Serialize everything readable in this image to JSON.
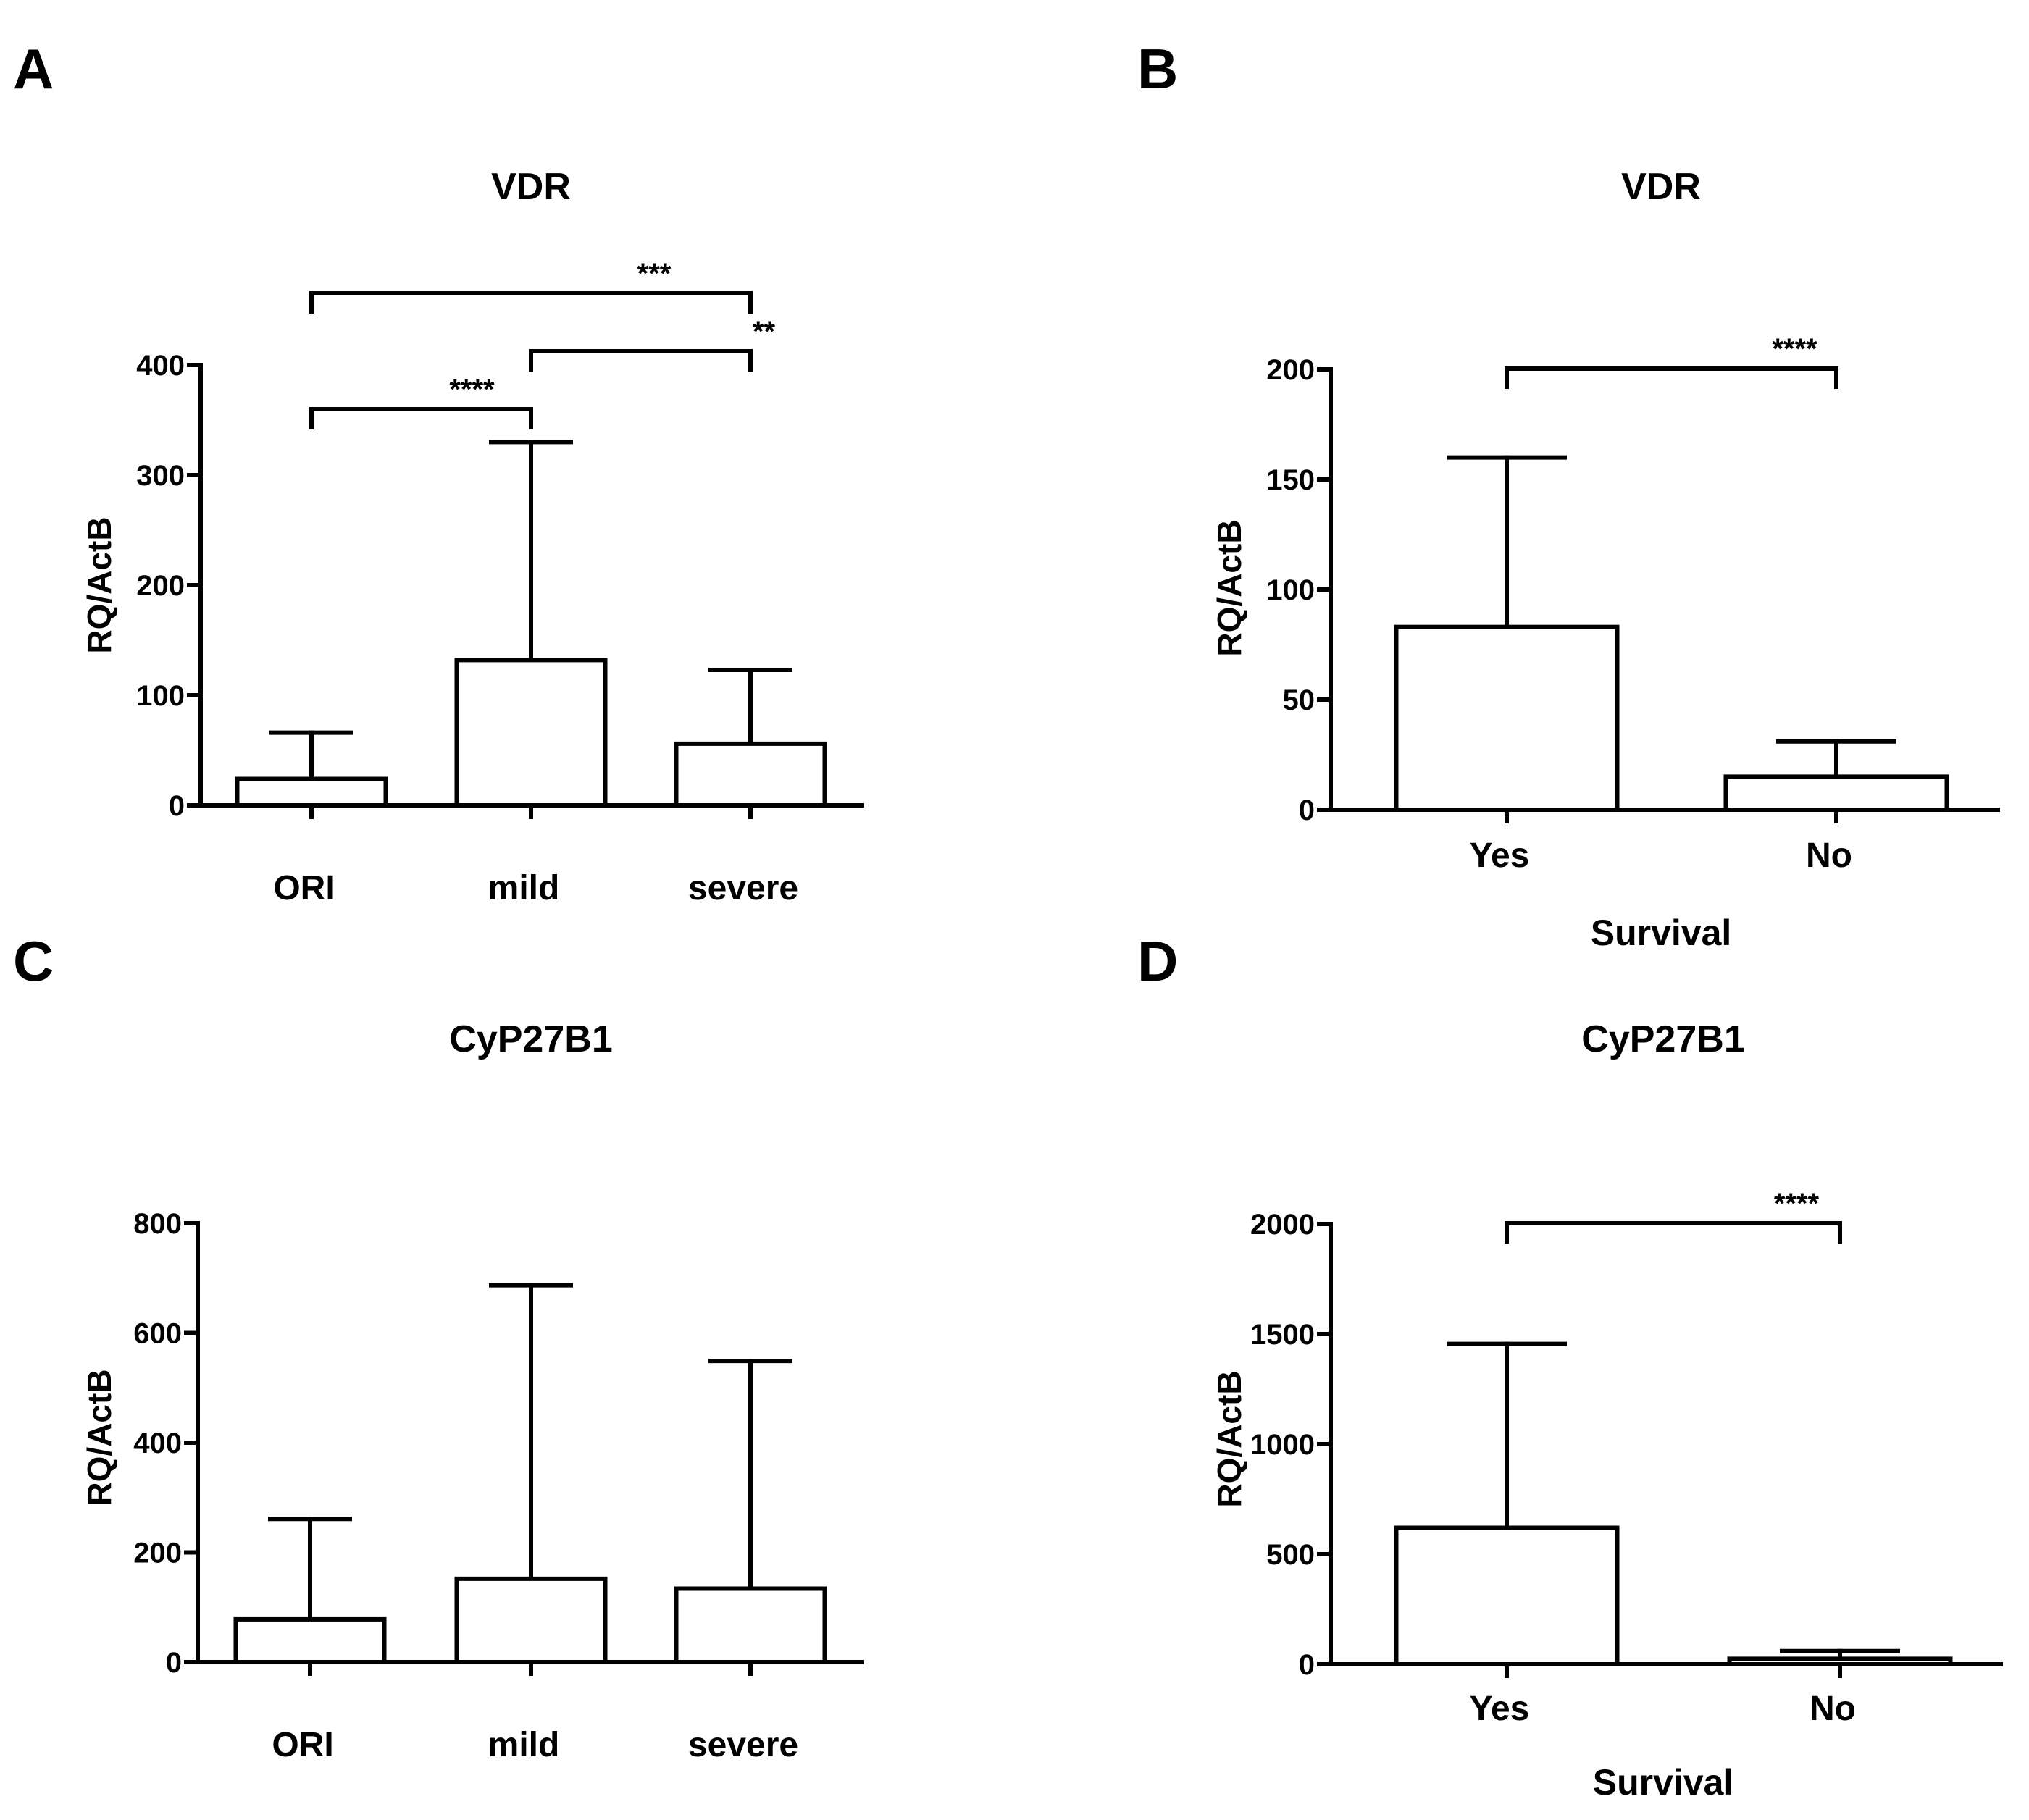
{
  "colors": {
    "ink": "#000000",
    "bar_fill": "#ffffff",
    "background": "#ffffff"
  },
  "chart_data": [
    {
      "panel": "A",
      "type": "bar",
      "title": "VDR",
      "ylabel": "RQ/ActB",
      "xlabel": "",
      "categories": [
        "ORI",
        "mild",
        "severe"
      ],
      "values": [
        24,
        132,
        56
      ],
      "error_upper": [
        66,
        330,
        123
      ],
      "ylim": [
        0,
        400
      ],
      "yticks": [
        0,
        100,
        200,
        300,
        400
      ],
      "significance": [
        {
          "from": 0,
          "to": 1,
          "label": "****",
          "level": 0
        },
        {
          "from": 1,
          "to": 2,
          "label": "**",
          "level": 1
        },
        {
          "from": 0,
          "to": 2,
          "label": "***",
          "level": 2
        }
      ]
    },
    {
      "panel": "B",
      "type": "bar",
      "title": "VDR",
      "ylabel": "RQ/ActB",
      "xlabel": "Survival",
      "categories": [
        "Yes",
        "No"
      ],
      "values": [
        83,
        15
      ],
      "error_upper": [
        160,
        31
      ],
      "ylim": [
        0,
        200
      ],
      "yticks": [
        0,
        50,
        100,
        150,
        200
      ],
      "significance": [
        {
          "from": 0,
          "to": 1,
          "label": "****",
          "level": 0
        }
      ]
    },
    {
      "panel": "C",
      "type": "bar",
      "title": "CyP27B1",
      "ylabel": "RQ/ActB",
      "xlabel": "",
      "categories": [
        "ORI",
        "mild",
        "severe"
      ],
      "values": [
        78,
        152,
        134
      ],
      "error_upper": [
        261,
        687,
        549
      ],
      "ylim": [
        0,
        800
      ],
      "yticks": [
        0,
        200,
        400,
        600,
        800
      ],
      "significance": []
    },
    {
      "panel": "D",
      "type": "bar",
      "title": "CyP27B1",
      "ylabel": "RQ/ActB",
      "xlabel": "Survival",
      "categories": [
        "Yes",
        "No"
      ],
      "values": [
        620,
        25
      ],
      "error_upper": [
        1455,
        60
      ],
      "ylim": [
        0,
        2000
      ],
      "yticks": [
        0,
        500,
        1000,
        1500,
        2000
      ],
      "significance": [
        {
          "from": 0,
          "to": 1,
          "label": "****",
          "level": 0
        }
      ]
    }
  ]
}
